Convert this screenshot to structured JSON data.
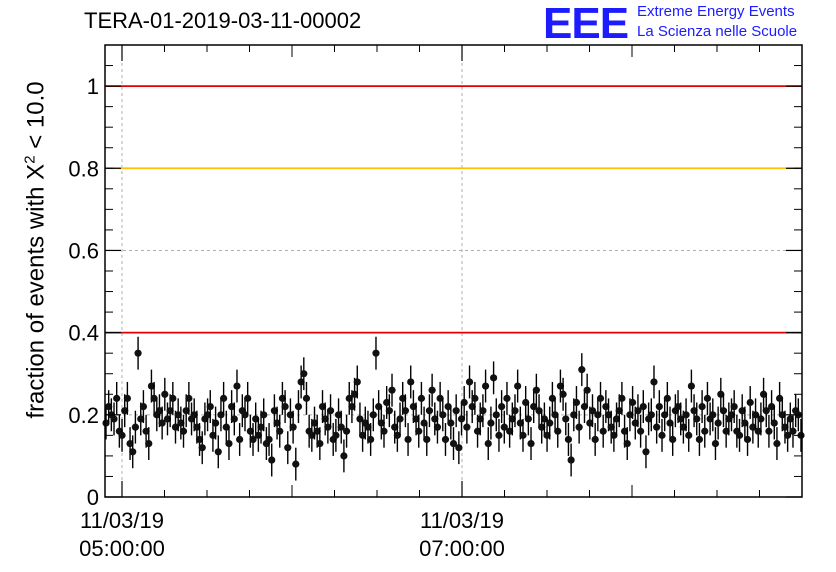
{
  "title": "TERA-01-2019-03-11-00002",
  "logo": {
    "mark": "EEE",
    "line1": "Extreme Energy Events",
    "line2": "La Scienza nelle Scuole",
    "color": "#1c1cff"
  },
  "chart_data": {
    "type": "scatter",
    "title": "TERA-01-2019-03-11-00002",
    "ylabel": {
      "prefix": "fraction of events with X",
      "sup": "2",
      "suffix": " < 10.0"
    },
    "xlabel": "",
    "ylim": [
      0,
      1.1
    ],
    "yticks": [
      "0",
      "0.2",
      "0.4",
      "0.6",
      "0.8",
      "1"
    ],
    "xticks": [
      {
        "date": "11/03/19",
        "time": "05:00:00"
      },
      {
        "date": "11/03/19",
        "time": "07:00:00"
      }
    ],
    "x_range_hours": [
      4.9,
      9.0
    ],
    "grid": true,
    "reference_lines": [
      {
        "y": 1.0,
        "color": "#e00000"
      },
      {
        "y": 0.8,
        "color": "#ffc000"
      },
      {
        "y": 0.4,
        "color": "#e00000"
      }
    ],
    "series": [
      {
        "error": 0.04,
        "values": [
          0.18,
          0.22,
          0.2,
          0.19,
          0.24,
          0.16,
          0.15,
          0.21,
          0.24,
          0.13,
          0.11,
          0.17,
          0.35,
          0.19,
          0.22,
          0.16,
          0.13,
          0.27,
          0.24,
          0.2,
          0.21,
          0.18,
          0.25,
          0.19,
          0.21,
          0.24,
          0.17,
          0.2,
          0.18,
          0.16,
          0.21,
          0.24,
          0.19,
          0.2,
          0.17,
          0.14,
          0.12,
          0.19,
          0.2,
          0.22,
          0.15,
          0.18,
          0.11,
          0.2,
          0.24,
          0.17,
          0.13,
          0.22,
          0.19,
          0.27,
          0.14,
          0.21,
          0.2,
          0.24,
          0.16,
          0.14,
          0.19,
          0.15,
          0.17,
          0.2,
          0.13,
          0.14,
          0.09,
          0.21,
          0.18,
          0.16,
          0.24,
          0.22,
          0.12,
          0.2,
          0.17,
          0.08,
          0.22,
          0.28,
          0.3,
          0.24,
          0.16,
          0.15,
          0.18,
          0.16,
          0.13,
          0.22,
          0.19,
          0.17,
          0.21,
          0.14,
          0.15,
          0.2,
          0.17,
          0.1,
          0.16,
          0.24,
          0.22,
          0.25,
          0.28,
          0.19,
          0.15,
          0.18,
          0.17,
          0.14,
          0.2,
          0.35,
          0.22,
          0.18,
          0.16,
          0.23,
          0.21,
          0.26,
          0.17,
          0.15,
          0.19,
          0.24,
          0.21,
          0.14,
          0.28,
          0.22,
          0.19,
          0.16,
          0.24,
          0.18,
          0.14,
          0.21,
          0.26,
          0.19,
          0.17,
          0.24,
          0.2,
          0.14,
          0.22,
          0.18,
          0.13,
          0.21,
          0.12,
          0.19,
          0.23,
          0.17,
          0.28,
          0.22,
          0.24,
          0.16,
          0.19,
          0.21,
          0.27,
          0.13,
          0.18,
          0.29,
          0.2,
          0.15,
          0.22,
          0.17,
          0.24,
          0.16,
          0.19,
          0.21,
          0.27,
          0.18,
          0.15,
          0.23,
          0.19,
          0.13,
          0.22,
          0.26,
          0.21,
          0.17,
          0.19,
          0.15,
          0.18,
          0.24,
          0.2,
          0.16,
          0.27,
          0.25,
          0.19,
          0.14,
          0.09,
          0.2,
          0.23,
          0.17,
          0.31,
          0.22,
          0.26,
          0.18,
          0.21,
          0.14,
          0.2,
          0.24,
          0.16,
          0.22,
          0.2,
          0.17,
          0.15,
          0.19,
          0.21,
          0.24,
          0.16,
          0.13,
          0.2,
          0.23,
          0.18,
          0.21,
          0.16,
          0.22,
          0.11,
          0.19,
          0.2,
          0.28,
          0.17,
          0.22,
          0.15,
          0.2,
          0.24,
          0.18,
          0.14,
          0.21,
          0.22,
          0.19,
          0.17,
          0.2,
          0.15,
          0.27,
          0.21,
          0.19,
          0.14,
          0.22,
          0.16,
          0.24,
          0.19,
          0.2,
          0.13,
          0.18,
          0.25,
          0.21,
          0.16,
          0.19,
          0.2,
          0.22,
          0.16,
          0.15,
          0.21,
          0.18,
          0.14,
          0.23,
          0.17,
          0.2,
          0.16,
          0.19,
          0.25,
          0.21,
          0.16,
          0.22,
          0.18,
          0.13,
          0.24,
          0.2,
          0.17,
          0.15,
          0.19,
          0.16,
          0.21,
          0.2,
          0.15
        ]
      }
    ]
  }
}
